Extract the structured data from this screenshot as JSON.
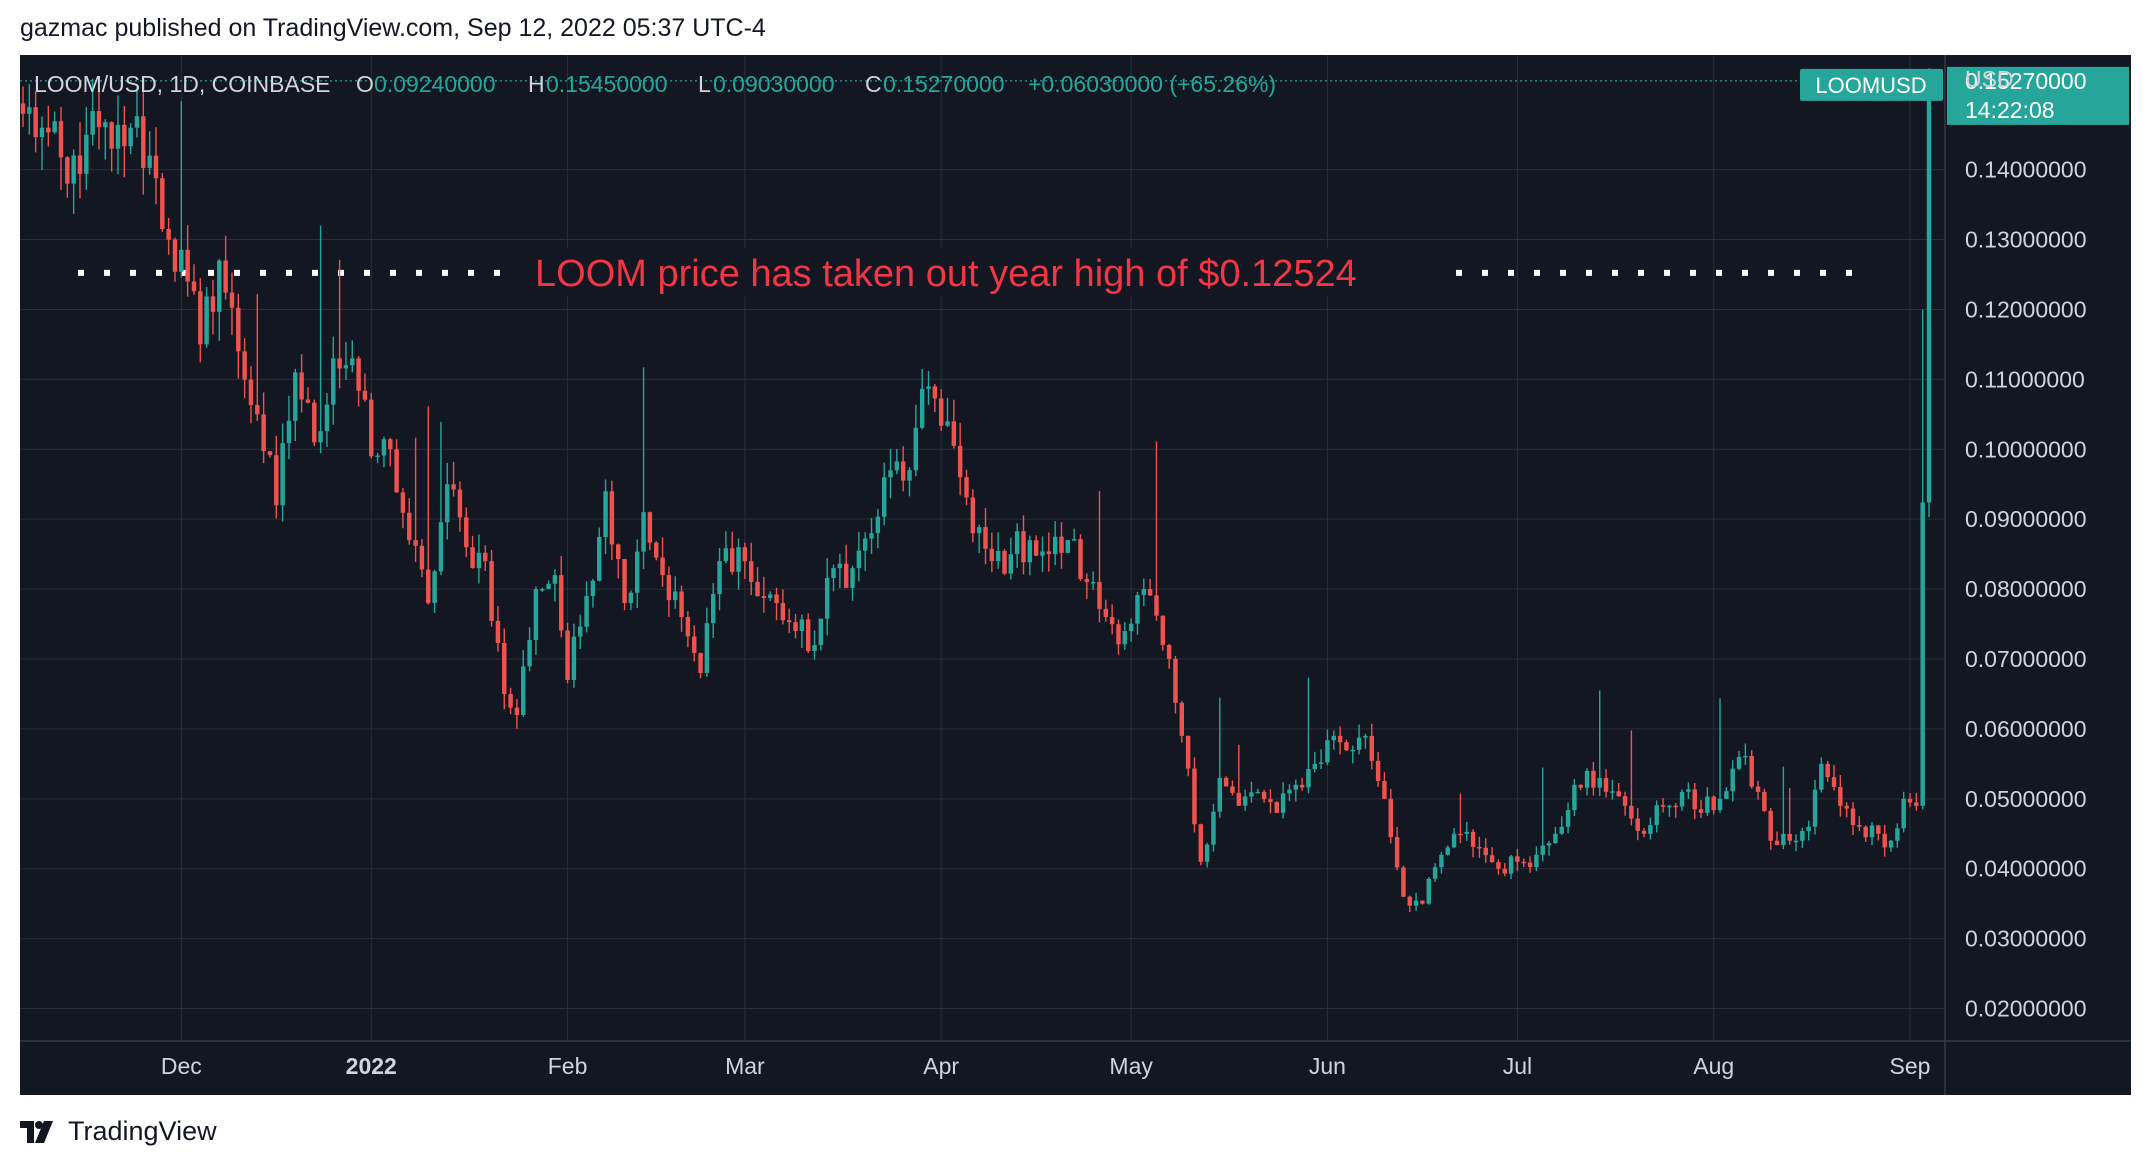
{
  "header": {
    "published": "gazmac published on TradingView.com, Sep 12, 2022 05:37 UTC-4"
  },
  "footer": {
    "brand": "TradingView"
  },
  "colors": {
    "background": "#131722",
    "grid": "#2a2e39",
    "up": "#26a69a",
    "down": "#ef5350",
    "annotation": "#f23645",
    "text": "#d1d4dc"
  },
  "chart_data": {
    "type": "candlestick",
    "symbol": "LOOMUSD",
    "interval": "1D",
    "legend": {
      "symbol_line": "LOOM/USD, 1D, COINBASE",
      "open_label": "O",
      "open": "0.09240000",
      "high_label": "H",
      "high": "0.15450000",
      "low_label": "L",
      "low": "0.09030000",
      "close_label": "C",
      "close": "0.15270000",
      "change": "+0.06030000 (+65.26%)"
    },
    "y_axis": {
      "currency": "USD",
      "ylim": [
        0.0155,
        0.1564
      ],
      "ticks": [
        "0.02000000",
        "0.03000000",
        "0.04000000",
        "0.05000000",
        "0.06000000",
        "0.07000000",
        "0.08000000",
        "0.09000000",
        "0.10000000",
        "0.11000000",
        "0.12000000",
        "0.13000000",
        "0.14000000"
      ],
      "tick_values": [
        0.02,
        0.03,
        0.04,
        0.05,
        0.06,
        0.07,
        0.08,
        0.09,
        0.1,
        0.11,
        0.12,
        0.13,
        0.14
      ]
    },
    "x_axis": {
      "labels": [
        "Dec",
        "2022",
        "Feb",
        "Mar",
        "Apr",
        "May",
        "Jun",
        "Jul",
        "Aug",
        "Sep"
      ],
      "label_days": [
        25,
        55,
        86,
        114,
        145,
        175,
        206,
        236,
        267,
        298
      ],
      "bold_label": "2022"
    },
    "price_label": {
      "symbol": "LOOMUSD",
      "value": "0.15270000",
      "countdown": "14:22:08"
    },
    "annotation": {
      "text": "LOOM price has taken out year high of $0.12524",
      "level": 0.12524
    },
    "anchor_closes": [
      [
        0,
        0.148
      ],
      [
        3,
        0.146
      ],
      [
        7,
        0.138
      ],
      [
        10,
        0.145
      ],
      [
        14,
        0.143
      ],
      [
        17,
        0.146
      ],
      [
        20,
        0.142
      ],
      [
        23,
        0.13
      ],
      [
        26,
        0.124
      ],
      [
        28,
        0.115
      ],
      [
        31,
        0.127
      ],
      [
        34,
        0.114
      ],
      [
        37,
        0.105
      ],
      [
        40,
        0.092
      ],
      [
        43,
        0.111
      ],
      [
        46,
        0.101
      ],
      [
        49,
        0.113
      ],
      [
        52,
        0.113
      ],
      [
        55,
        0.099
      ],
      [
        58,
        0.1
      ],
      [
        61,
        0.087
      ],
      [
        64,
        0.078
      ],
      [
        67,
        0.095
      ],
      [
        70,
        0.086
      ],
      [
        73,
        0.084
      ],
      [
        76,
        0.065
      ],
      [
        78,
        0.062
      ],
      [
        81,
        0.08
      ],
      [
        84,
        0.082
      ],
      [
        86,
        0.067
      ],
      [
        89,
        0.079
      ],
      [
        92,
        0.094
      ],
      [
        95,
        0.078
      ],
      [
        98,
        0.091
      ],
      [
        101,
        0.082
      ],
      [
        104,
        0.076
      ],
      [
        107,
        0.068
      ],
      [
        110,
        0.084
      ],
      [
        113,
        0.086
      ],
      [
        116,
        0.079
      ],
      [
        119,
        0.078
      ],
      [
        122,
        0.074
      ],
      [
        125,
        0.072
      ],
      [
        128,
        0.083
      ],
      [
        131,
        0.083
      ],
      [
        134,
        0.088
      ],
      [
        137,
        0.097
      ],
      [
        140,
        0.097
      ],
      [
        143,
        0.109
      ],
      [
        146,
        0.104
      ],
      [
        148,
        0.096
      ],
      [
        150,
        0.088
      ],
      [
        153,
        0.084
      ],
      [
        156,
        0.085
      ],
      [
        159,
        0.087
      ],
      [
        162,
        0.085
      ],
      [
        165,
        0.087
      ],
      [
        168,
        0.081
      ],
      [
        171,
        0.076
      ],
      [
        174,
        0.074
      ],
      [
        177,
        0.08
      ],
      [
        180,
        0.072
      ],
      [
        183,
        0.059
      ],
      [
        186,
        0.041
      ],
      [
        189,
        0.053
      ],
      [
        192,
        0.049
      ],
      [
        195,
        0.051
      ],
      [
        198,
        0.048
      ],
      [
        201,
        0.052
      ],
      [
        204,
        0.055
      ],
      [
        207,
        0.059
      ],
      [
        210,
        0.057
      ],
      [
        212,
        0.059
      ],
      [
        215,
        0.05
      ],
      [
        218,
        0.036
      ],
      [
        221,
        0.035
      ],
      [
        224,
        0.042
      ],
      [
        227,
        0.045
      ],
      [
        230,
        0.043
      ],
      [
        233,
        0.04
      ],
      [
        236,
        0.041
      ],
      [
        239,
        0.042
      ],
      [
        242,
        0.045
      ],
      [
        245,
        0.052
      ],
      [
        247,
        0.054
      ],
      [
        250,
        0.051
      ],
      [
        253,
        0.049
      ],
      [
        256,
        0.045
      ],
      [
        259,
        0.049
      ],
      [
        262,
        0.051
      ],
      [
        265,
        0.048
      ],
      [
        268,
        0.05
      ],
      [
        271,
        0.056
      ],
      [
        274,
        0.051
      ],
      [
        276,
        0.044
      ],
      [
        279,
        0.044
      ],
      [
        282,
        0.046
      ],
      [
        284,
        0.055
      ],
      [
        287,
        0.049
      ],
      [
        290,
        0.046
      ],
      [
        293,
        0.045
      ],
      [
        295,
        0.044
      ],
      [
        297,
        0.05
      ],
      [
        299,
        0.049
      ],
      [
        300,
        0.0924
      ],
      [
        301,
        0.1527
      ]
    ]
  }
}
